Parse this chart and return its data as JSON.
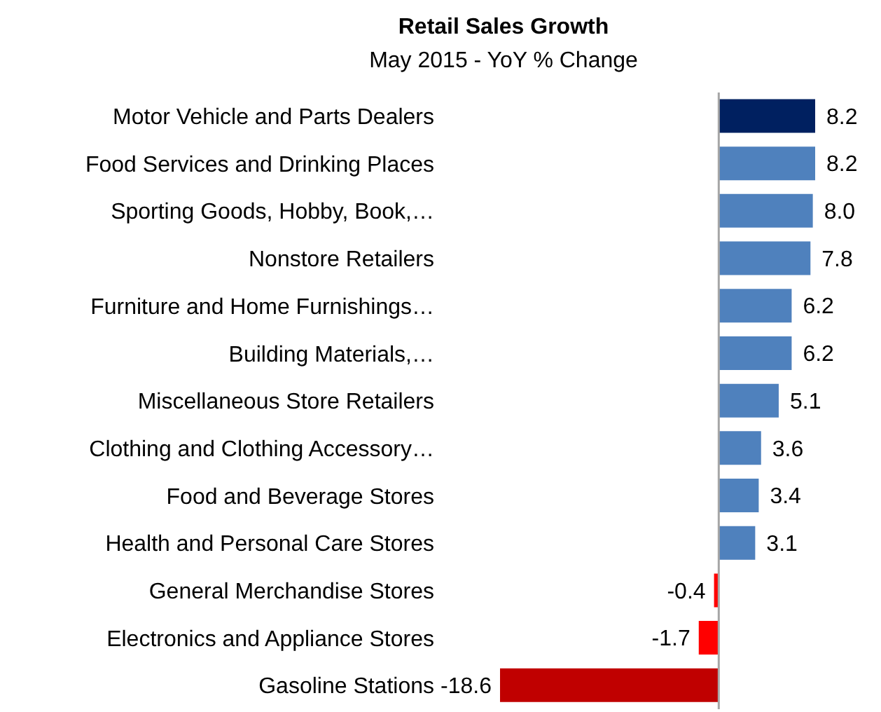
{
  "chart_data": {
    "type": "bar",
    "orientation": "horizontal",
    "title": "Retail Sales Growth",
    "subtitle": "May 2015 - YoY % Change",
    "categories": [
      "Motor Vehicle and Parts Dealers",
      "Food Services and Drinking Places",
      "Sporting Goods, Hobby, Book,…",
      "Nonstore Retailers",
      "Furniture and Home Furnishings…",
      "Building Materials,…",
      "Miscellaneous Store Retailers",
      "Clothing and Clothing Accessory…",
      "Food and Beverage Stores",
      "Health and Personal Care Stores",
      "General Merchandise Stores",
      "Electronics and Appliance Stores",
      "Gasoline Stations"
    ],
    "values": [
      8.2,
      8.2,
      8.0,
      7.8,
      6.2,
      6.2,
      5.1,
      3.6,
      3.4,
      3.1,
      -0.4,
      -1.7,
      -18.6
    ],
    "colors": [
      "#002060",
      "#4f81bd",
      "#4f81bd",
      "#4f81bd",
      "#4f81bd",
      "#4f81bd",
      "#4f81bd",
      "#4f81bd",
      "#4f81bd",
      "#4f81bd",
      "#ff0000",
      "#ff0000",
      "#c00000"
    ],
    "value_labels": [
      "8.2",
      "8.2",
      "8.0",
      "7.8",
      "6.2",
      "6.2",
      "5.1",
      "3.6",
      "3.4",
      "3.1",
      "-0.4",
      "-1.7",
      "-18.6"
    ]
  }
}
